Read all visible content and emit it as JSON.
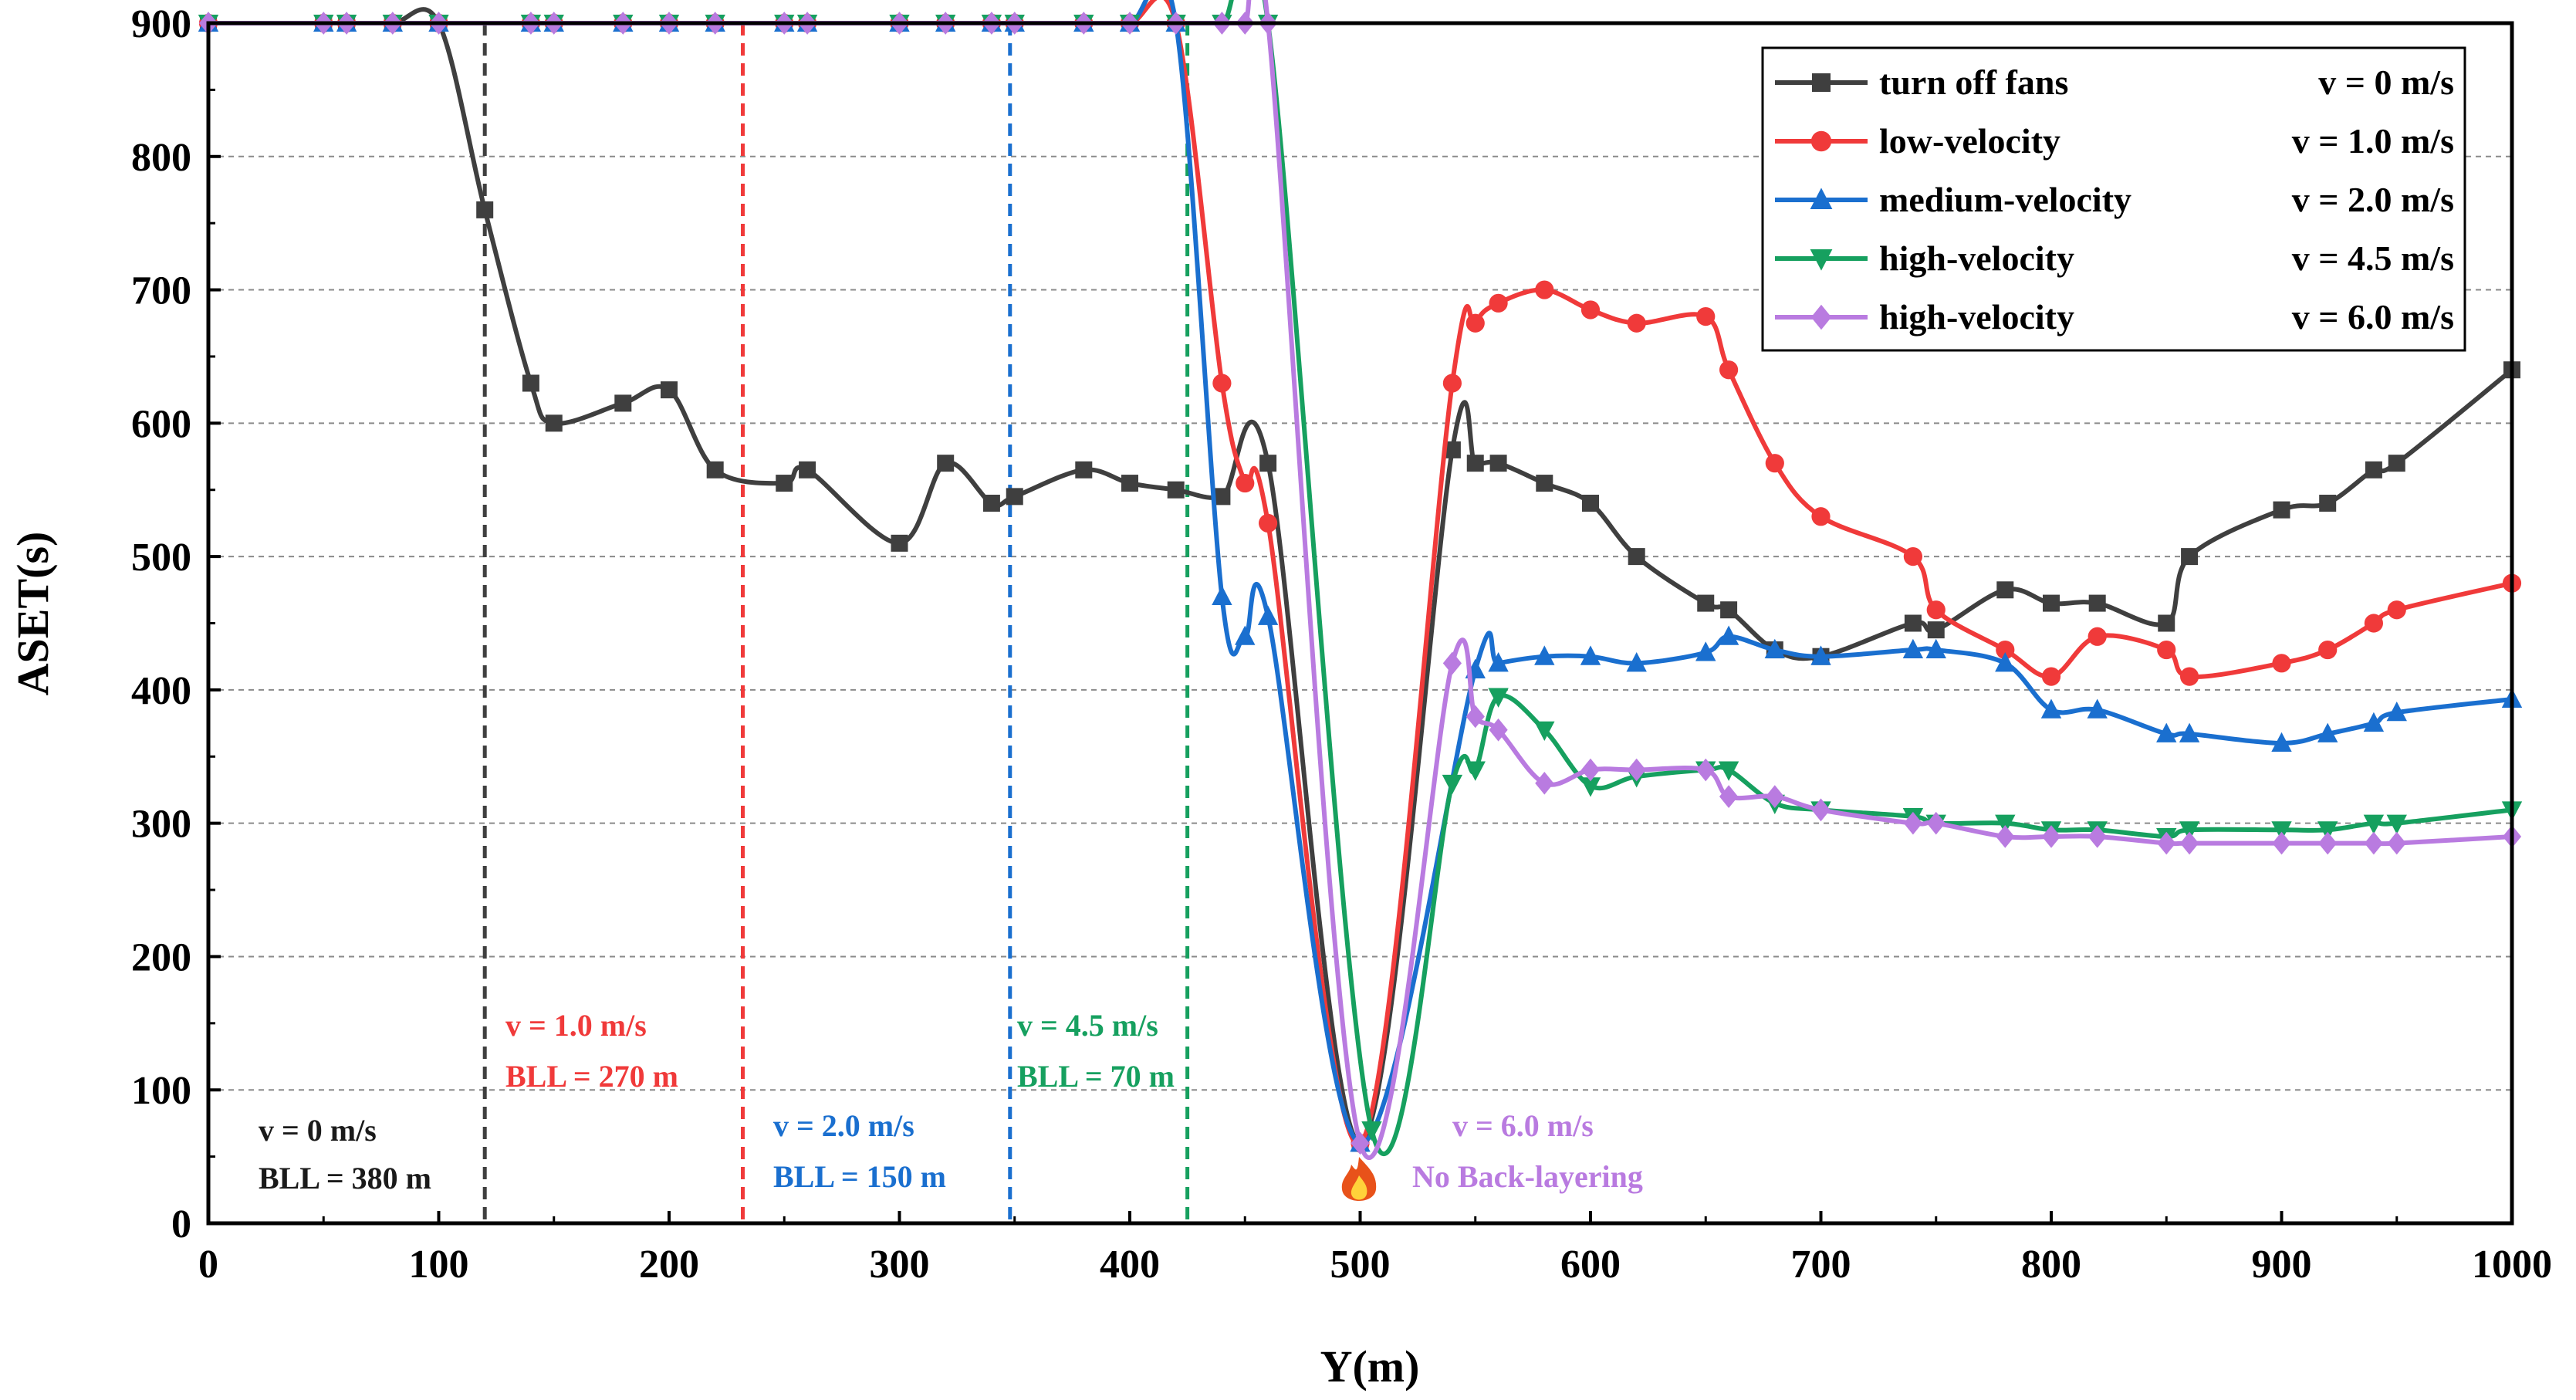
{
  "chart_data": {
    "type": "line",
    "title": "",
    "xlabel": "Y(m)",
    "ylabel": "ASET(s)",
    "xlim": [
      0,
      1000
    ],
    "ylim": [
      0,
      900
    ],
    "x_ticks": [
      "0",
      "100",
      "200",
      "300",
      "400",
      "500",
      "600",
      "700",
      "800",
      "900",
      "1000"
    ],
    "y_ticks": [
      "0",
      "100",
      "200",
      "300",
      "400",
      "500",
      "600",
      "700",
      "800",
      "900"
    ],
    "grid": "horizontal dashed",
    "legend_position": "top-right",
    "series": [
      {
        "name": "turn off fans",
        "velocity_label": "v = 0 m/s",
        "color": "#3f3f3f",
        "marker": "square",
        "points": [
          [
            0,
            900
          ],
          [
            50,
            900
          ],
          [
            60,
            900
          ],
          [
            80,
            900
          ],
          [
            100,
            900
          ],
          [
            120,
            760
          ],
          [
            140,
            630
          ],
          [
            150,
            600
          ],
          [
            180,
            615
          ],
          [
            200,
            625
          ],
          [
            220,
            565
          ],
          [
            250,
            555
          ],
          [
            260,
            565
          ],
          [
            300,
            510
          ],
          [
            320,
            570
          ],
          [
            340,
            540
          ],
          [
            350,
            545
          ],
          [
            380,
            565
          ],
          [
            400,
            555
          ],
          [
            420,
            550
          ],
          [
            440,
            545
          ],
          [
            460,
            570
          ],
          [
            500,
            60
          ],
          [
            540,
            580
          ],
          [
            550,
            570
          ],
          [
            560,
            570
          ],
          [
            580,
            555
          ],
          [
            600,
            540
          ],
          [
            620,
            500
          ],
          [
            650,
            465
          ],
          [
            660,
            460
          ],
          [
            680,
            430
          ],
          [
            700,
            425
          ],
          [
            740,
            450
          ],
          [
            750,
            445
          ],
          [
            780,
            475
          ],
          [
            800,
            465
          ],
          [
            820,
            465
          ],
          [
            850,
            450
          ],
          [
            860,
            500
          ],
          [
            900,
            535
          ],
          [
            920,
            540
          ],
          [
            940,
            565
          ],
          [
            950,
            570
          ],
          [
            1000,
            640
          ]
        ]
      },
      {
        "name": "low-velocity",
        "velocity_label": "v = 1.0 m/s",
        "color": "#f03a3a",
        "marker": "circle",
        "points": [
          [
            0,
            900
          ],
          [
            50,
            900
          ],
          [
            60,
            900
          ],
          [
            80,
            900
          ],
          [
            100,
            900
          ],
          [
            140,
            900
          ],
          [
            150,
            900
          ],
          [
            180,
            900
          ],
          [
            200,
            900
          ],
          [
            220,
            900
          ],
          [
            250,
            900
          ],
          [
            260,
            900
          ],
          [
            300,
            900
          ],
          [
            320,
            900
          ],
          [
            340,
            900
          ],
          [
            350,
            900
          ],
          [
            380,
            900
          ],
          [
            400,
            900
          ],
          [
            420,
            900
          ],
          [
            440,
            630
          ],
          [
            450,
            555
          ],
          [
            460,
            525
          ],
          [
            500,
            60
          ],
          [
            540,
            630
          ],
          [
            550,
            675
          ],
          [
            560,
            690
          ],
          [
            580,
            700
          ],
          [
            600,
            685
          ],
          [
            620,
            675
          ],
          [
            650,
            680
          ],
          [
            660,
            640
          ],
          [
            680,
            570
          ],
          [
            700,
            530
          ],
          [
            740,
            500
          ],
          [
            750,
            460
          ],
          [
            780,
            430
          ],
          [
            800,
            410
          ],
          [
            820,
            440
          ],
          [
            850,
            430
          ],
          [
            860,
            410
          ],
          [
            900,
            420
          ],
          [
            920,
            430
          ],
          [
            940,
            450
          ],
          [
            950,
            460
          ],
          [
            1000,
            480
          ]
        ]
      },
      {
        "name": "medium-velocity",
        "velocity_label": "v = 2.0 m/s",
        "color": "#1a6fcf",
        "marker": "triangle-up",
        "points": [
          [
            0,
            900
          ],
          [
            50,
            900
          ],
          [
            60,
            900
          ],
          [
            80,
            900
          ],
          [
            100,
            900
          ],
          [
            140,
            900
          ],
          [
            150,
            900
          ],
          [
            180,
            900
          ],
          [
            200,
            900
          ],
          [
            220,
            900
          ],
          [
            250,
            900
          ],
          [
            260,
            900
          ],
          [
            300,
            900
          ],
          [
            320,
            900
          ],
          [
            340,
            900
          ],
          [
            350,
            900
          ],
          [
            380,
            900
          ],
          [
            400,
            900
          ],
          [
            420,
            900
          ],
          [
            440,
            470
          ],
          [
            450,
            440
          ],
          [
            460,
            455
          ],
          [
            500,
            60
          ],
          [
            550,
            415
          ],
          [
            560,
            420
          ],
          [
            580,
            425
          ],
          [
            600,
            425
          ],
          [
            620,
            420
          ],
          [
            650,
            428
          ],
          [
            660,
            440
          ],
          [
            680,
            430
          ],
          [
            700,
            425
          ],
          [
            740,
            430
          ],
          [
            750,
            430
          ],
          [
            780,
            420
          ],
          [
            800,
            385
          ],
          [
            820,
            385
          ],
          [
            850,
            367
          ],
          [
            860,
            367
          ],
          [
            900,
            360
          ],
          [
            920,
            367
          ],
          [
            940,
            375
          ],
          [
            950,
            383
          ],
          [
            1000,
            393
          ]
        ]
      },
      {
        "name": "high-velocity",
        "velocity_label": "v = 4.5 m/s",
        "color": "#16a05f",
        "marker": "triangle-down",
        "points": [
          [
            0,
            900
          ],
          [
            50,
            900
          ],
          [
            60,
            900
          ],
          [
            80,
            900
          ],
          [
            100,
            900
          ],
          [
            140,
            900
          ],
          [
            150,
            900
          ],
          [
            180,
            900
          ],
          [
            200,
            900
          ],
          [
            220,
            900
          ],
          [
            250,
            900
          ],
          [
            260,
            900
          ],
          [
            300,
            900
          ],
          [
            320,
            900
          ],
          [
            340,
            900
          ],
          [
            350,
            900
          ],
          [
            380,
            900
          ],
          [
            400,
            900
          ],
          [
            420,
            900
          ],
          [
            440,
            900
          ],
          [
            460,
            900
          ],
          [
            505,
            70
          ],
          [
            540,
            330
          ],
          [
            550,
            340
          ],
          [
            560,
            395
          ],
          [
            580,
            370
          ],
          [
            600,
            328
          ],
          [
            620,
            335
          ],
          [
            650,
            340
          ],
          [
            660,
            340
          ],
          [
            680,
            315
          ],
          [
            700,
            310
          ],
          [
            740,
            305
          ],
          [
            750,
            300
          ],
          [
            780,
            300
          ],
          [
            800,
            295
          ],
          [
            820,
            295
          ],
          [
            850,
            290
          ],
          [
            860,
            295
          ],
          [
            900,
            295
          ],
          [
            920,
            295
          ],
          [
            940,
            300
          ],
          [
            950,
            300
          ],
          [
            1000,
            310
          ]
        ]
      },
      {
        "name": "high-velocity",
        "velocity_label": "v = 6.0 m/s",
        "color": "#b97be0",
        "marker": "diamond",
        "points": [
          [
            0,
            900
          ],
          [
            50,
            900
          ],
          [
            60,
            900
          ],
          [
            80,
            900
          ],
          [
            100,
            900
          ],
          [
            140,
            900
          ],
          [
            150,
            900
          ],
          [
            180,
            900
          ],
          [
            200,
            900
          ],
          [
            220,
            900
          ],
          [
            250,
            900
          ],
          [
            260,
            900
          ],
          [
            300,
            900
          ],
          [
            320,
            900
          ],
          [
            340,
            900
          ],
          [
            350,
            900
          ],
          [
            380,
            900
          ],
          [
            400,
            900
          ],
          [
            420,
            900
          ],
          [
            440,
            900
          ],
          [
            450,
            900
          ],
          [
            460,
            900
          ],
          [
            500,
            60
          ],
          [
            540,
            420
          ],
          [
            550,
            380
          ],
          [
            560,
            370
          ],
          [
            580,
            330
          ],
          [
            600,
            340
          ],
          [
            620,
            340
          ],
          [
            650,
            340
          ],
          [
            660,
            320
          ],
          [
            680,
            320
          ],
          [
            700,
            310
          ],
          [
            740,
            300
          ],
          [
            750,
            300
          ],
          [
            780,
            290
          ],
          [
            800,
            290
          ],
          [
            820,
            290
          ],
          [
            850,
            285
          ],
          [
            860,
            285
          ],
          [
            900,
            285
          ],
          [
            920,
            285
          ],
          [
            940,
            285
          ],
          [
            950,
            285
          ],
          [
            1000,
            290
          ]
        ]
      }
    ],
    "reference_lines": [
      {
        "x": 120,
        "color": "#3f3f3f",
        "label_v": "v = 0 m/s",
        "label_bll": "BLL = 380 m"
      },
      {
        "x": 232,
        "color": "#f03a3a",
        "label_v": "v = 1.0 m/s",
        "label_bll": "BLL = 270 m"
      },
      {
        "x": 348,
        "color": "#1a6fcf",
        "label_v": "v = 2.0 m/s",
        "label_bll": "BLL = 150 m"
      },
      {
        "x": 425,
        "color": "#16a05f",
        "label_v": "v = 4.5 m/s",
        "label_bll": "BLL = 70 m"
      }
    ],
    "annotations": [
      {
        "text_v": "v = 6.0 m/s",
        "text_note": "No Back-layering",
        "color": "#b97be0"
      }
    ],
    "fire_marker": {
      "x": 500,
      "icon": "fire-icon"
    }
  }
}
